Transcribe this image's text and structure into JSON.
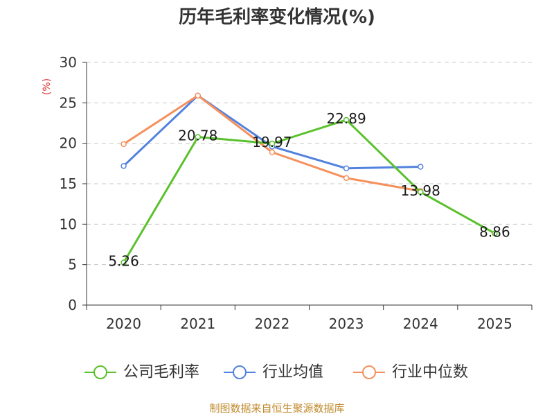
{
  "chart_data": {
    "type": "line",
    "title": "历年毛利率变化情况(%)",
    "ylabel": "(%)",
    "categories": [
      "2020",
      "2021",
      "2022",
      "2023",
      "2024",
      "2025"
    ],
    "ylim": [
      0,
      30
    ],
    "yticks": [
      0,
      5,
      10,
      15,
      20,
      25,
      30
    ],
    "grid": true,
    "legend_position": "bottom",
    "series": [
      {
        "name": "公司毛利率",
        "color": "#5ac12c",
        "values": [
          5.26,
          20.78,
          19.97,
          22.89,
          13.98,
          8.86
        ],
        "labels": [
          "5.26",
          "20.78",
          "19.97",
          "22.89",
          "13.98",
          "8.86"
        ]
      },
      {
        "name": "行业均值",
        "color": "#5282de",
        "values": [
          17.2,
          25.9,
          19.6,
          16.9,
          17.1,
          null
        ]
      },
      {
        "name": "行业中位数",
        "color": "#f5905c",
        "values": [
          19.9,
          25.9,
          18.9,
          15.7,
          14.1,
          null
        ]
      }
    ]
  },
  "footer": {
    "source": "制图数据来自恒生聚源数据库"
  }
}
